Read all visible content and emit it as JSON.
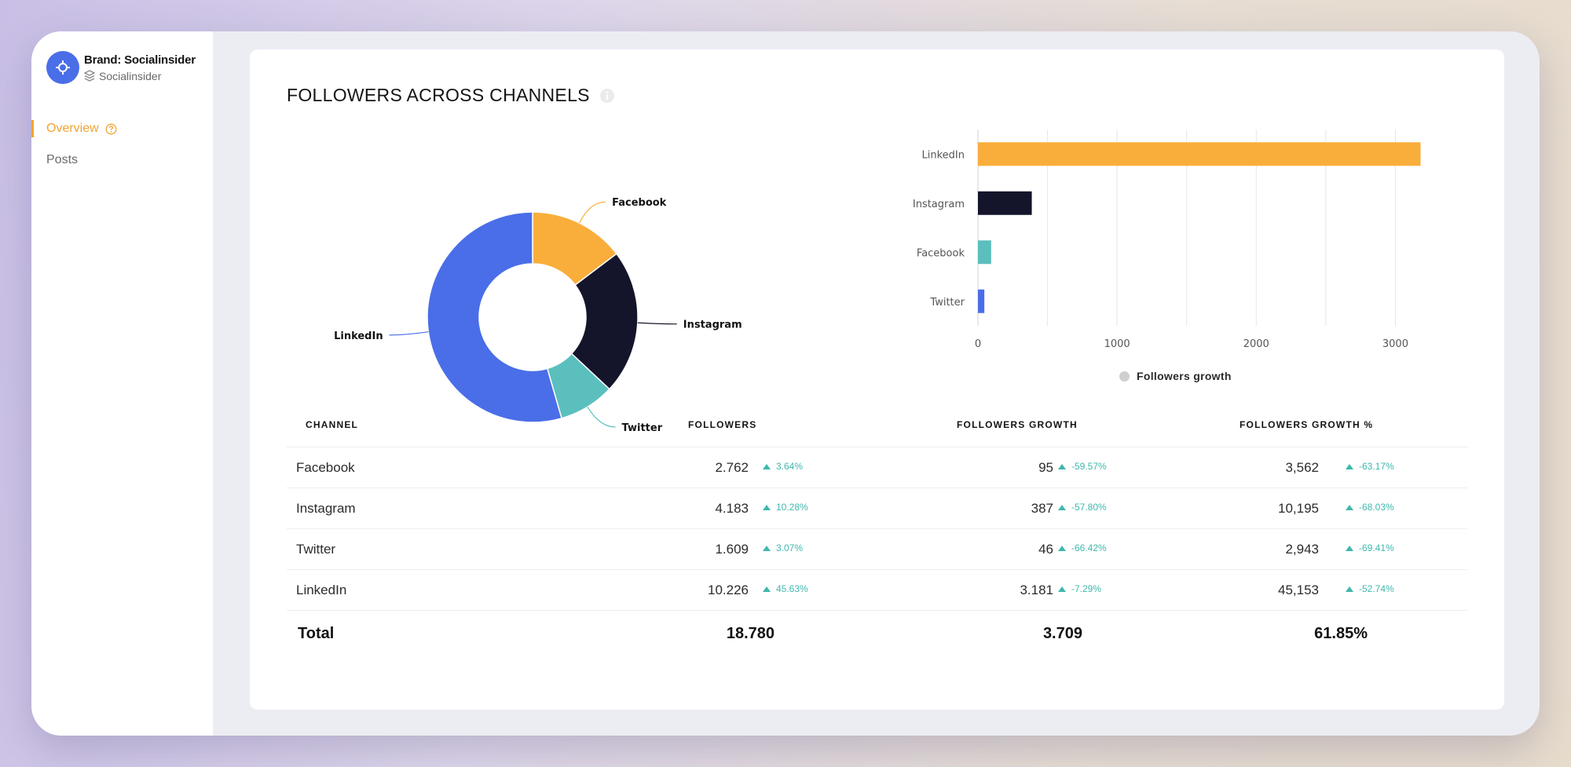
{
  "sidebar": {
    "brand_title": "Brand: Socialinsider",
    "brand_sub": "Socialinsider",
    "nav": [
      {
        "label": "Overview",
        "active": true
      },
      {
        "label": "Posts",
        "active": false
      }
    ]
  },
  "card": {
    "title": "FOLLOWERS ACROSS CHANNELS"
  },
  "chart_data": [
    {
      "type": "pie",
      "hole": true,
      "slices": [
        {
          "label": "Facebook",
          "value": 2762,
          "color": "#f9ae3b"
        },
        {
          "label": "Instagram",
          "value": 4183,
          "color": "#14142b"
        },
        {
          "label": "Twitter",
          "value": 1609,
          "color": "#5bbfbe"
        },
        {
          "label": "LinkedIn",
          "value": 10226,
          "color": "#4a6ee8"
        }
      ]
    },
    {
      "type": "bar",
      "orientation": "horizontal",
      "categories": [
        "LinkedIn",
        "Instagram",
        "Facebook",
        "Twitter"
      ],
      "values": [
        3181,
        387,
        95,
        46
      ],
      "colors": [
        "#f9ae3b",
        "#14142b",
        "#5bbfbe",
        "#4a6ee8"
      ],
      "xlim": [
        0,
        3500
      ],
      "xticks": [
        0,
        1000,
        2000,
        3000
      ],
      "legend": "Followers growth",
      "legend_color": "#cfcfcf"
    }
  ],
  "table": {
    "headers": [
      "CHANNEL",
      "FOLLOWERS",
      "FOLLOWERS GROWTH",
      "FOLLOWERS GROWTH %"
    ],
    "rows": [
      {
        "channel": "Facebook",
        "followers": "2.762",
        "followers_chg": "3.64%",
        "growth": "95",
        "growth_chg": "-59.57%",
        "growth_pct": "3,562",
        "growth_pct_chg": "-63.17%"
      },
      {
        "channel": "Instagram",
        "followers": "4.183",
        "followers_chg": "10.28%",
        "growth": "387",
        "growth_chg": "-57.80%",
        "growth_pct": "10,195",
        "growth_pct_chg": "-68.03%"
      },
      {
        "channel": "Twitter",
        "followers": "1.609",
        "followers_chg": "3.07%",
        "growth": "46",
        "growth_chg": "-66.42%",
        "growth_pct": "2,943",
        "growth_pct_chg": "-69.41%"
      },
      {
        "channel": "LinkedIn",
        "followers": "10.226",
        "followers_chg": "45.63%",
        "growth": "3.181",
        "growth_chg": "-7.29%",
        "growth_pct": "45,153",
        "growth_pct_chg": "-52.74%"
      }
    ],
    "total": {
      "label": "Total",
      "followers": "18.780",
      "growth": "3.709",
      "growth_pct": "61.85%"
    }
  }
}
